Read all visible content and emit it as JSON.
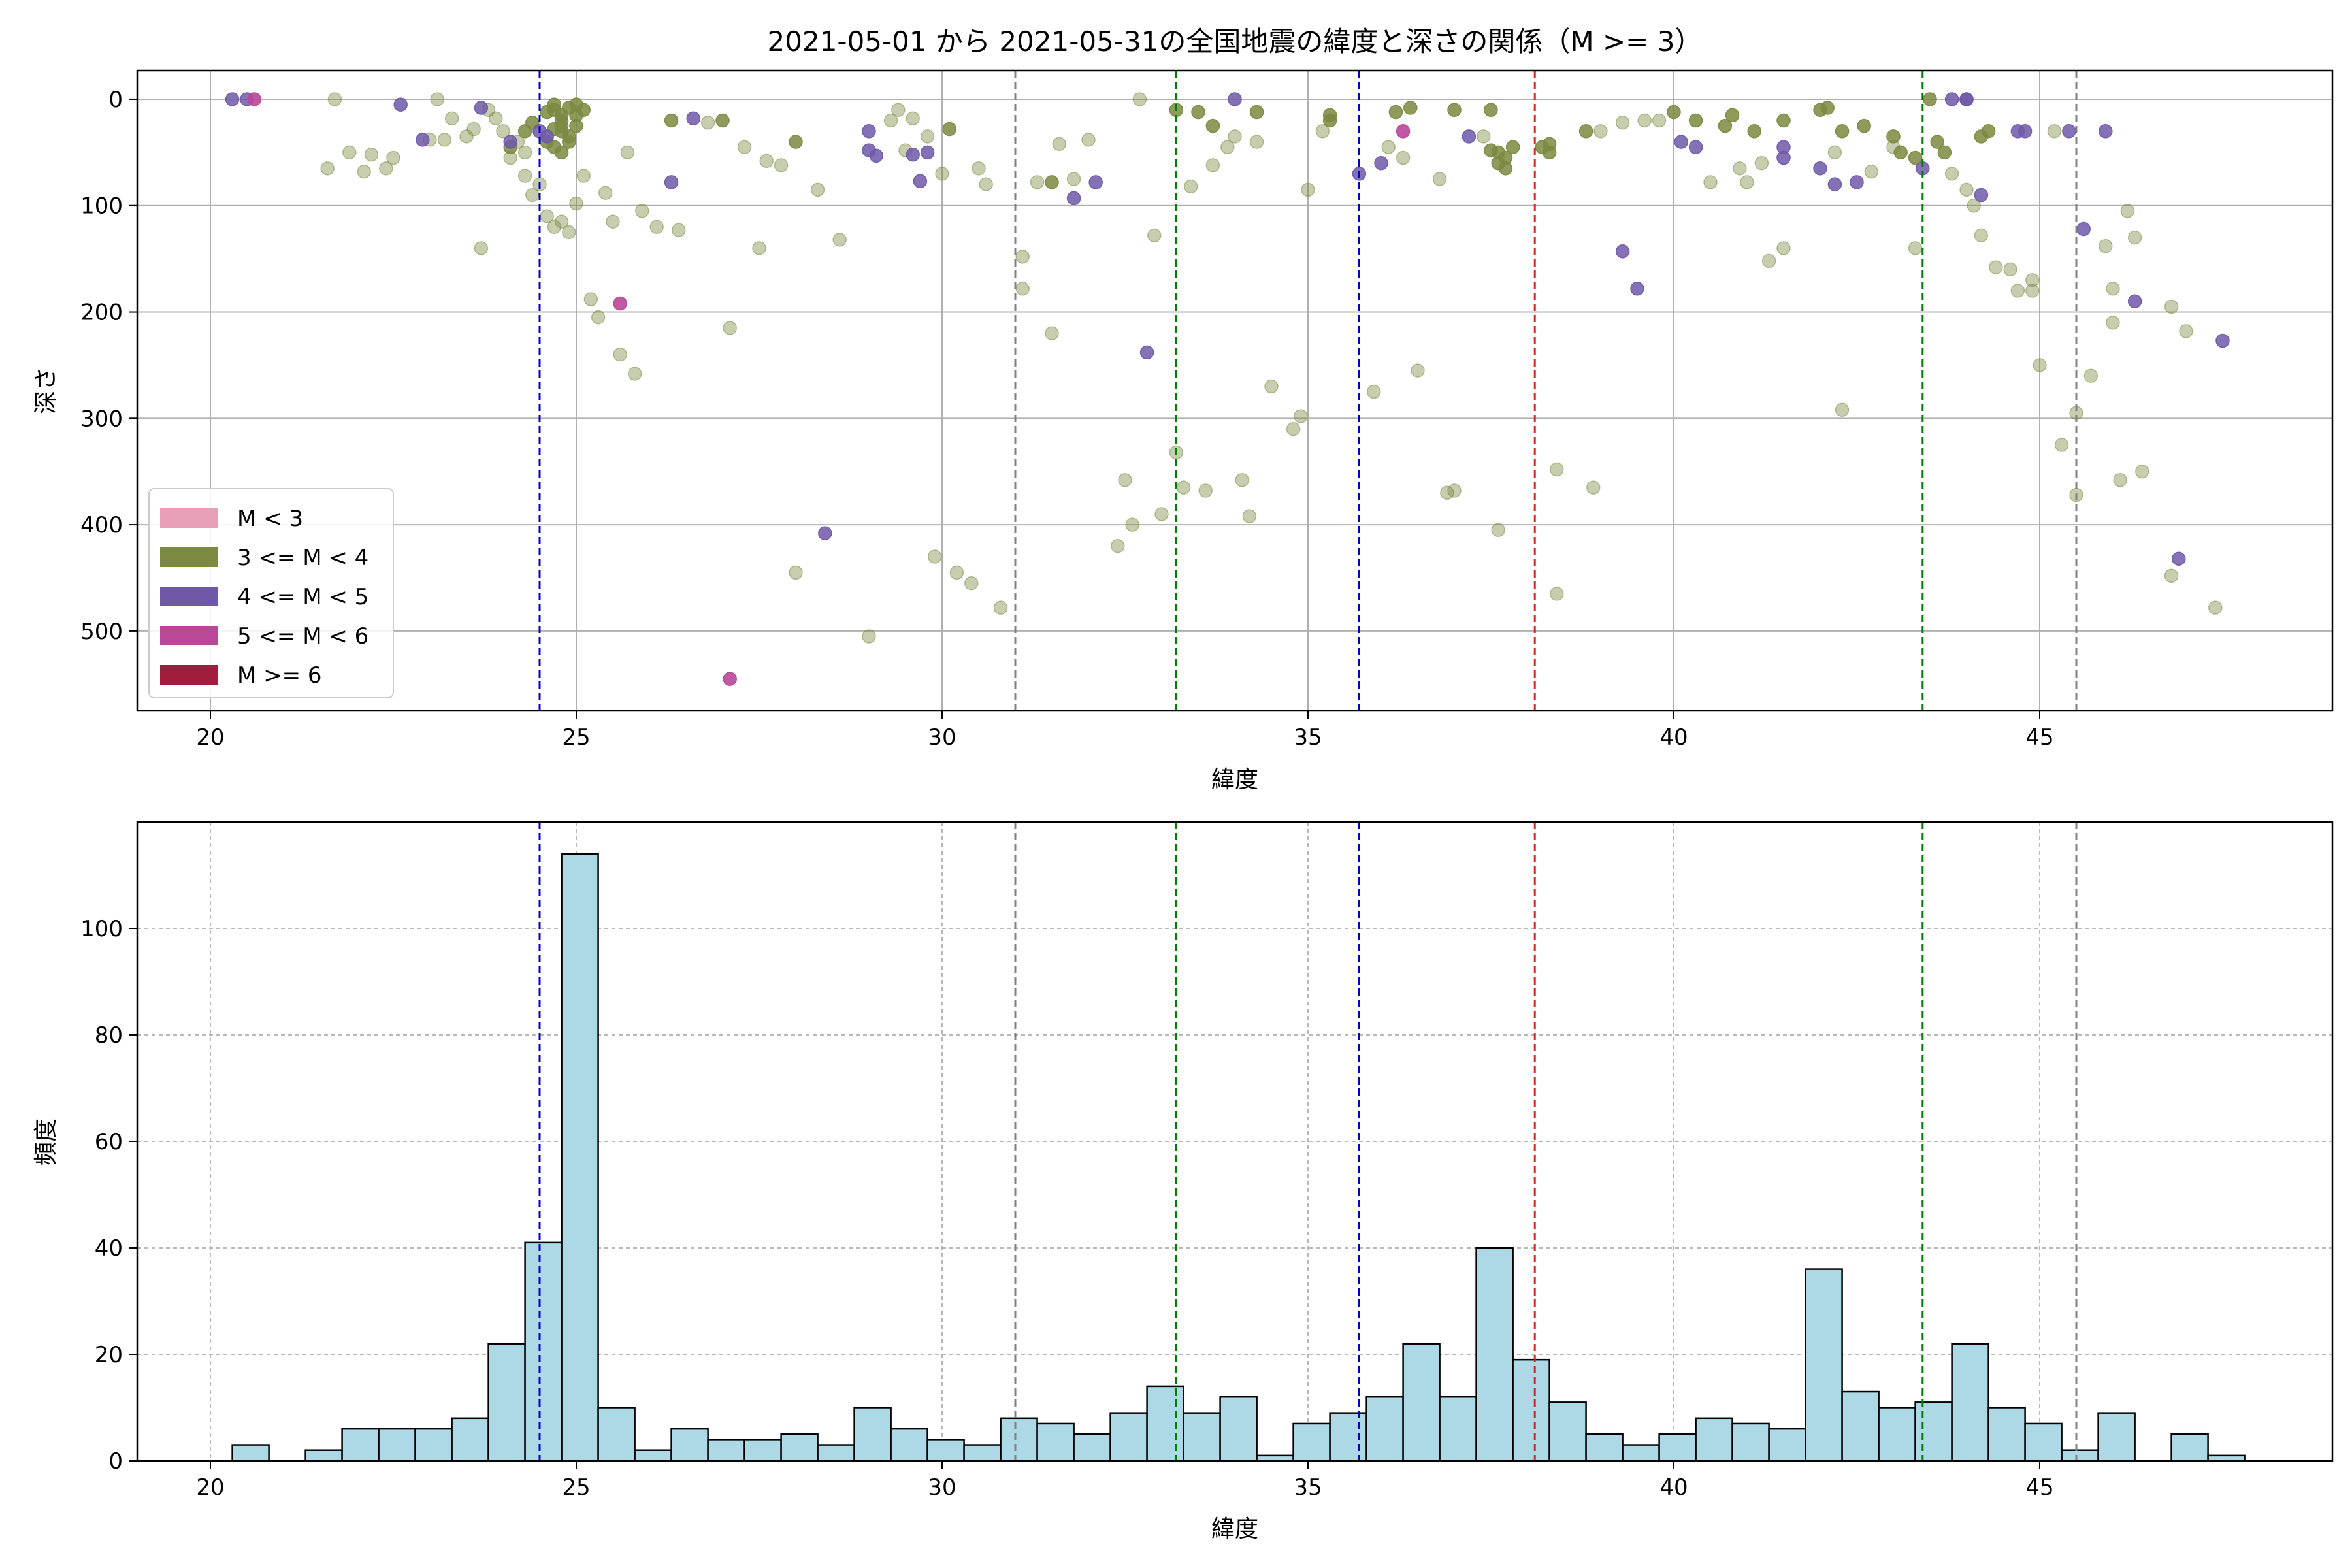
{
  "title": "2021-05-01 から 2021-05-31の全国地震の緯度と深さの関係（M >= 3）",
  "colors": {
    "m_lt3": "#e8a0b8",
    "m_3_4": "#7a8a40",
    "m_4_5": "#7058a8",
    "m_5_6": "#b84898",
    "m_ge6": "#a01e3c",
    "blue": "#0000cc",
    "grey": "#808080",
    "green": "#008000",
    "red": "#dd2222",
    "hist_fill": "#add8e6"
  },
  "chart_data": [
    {
      "type": "scatter",
      "xlabel": "緯度",
      "ylabel": "深さ",
      "xlim": [
        19,
        49
      ],
      "ylim": [
        575,
        -27
      ],
      "y_inverted": true,
      "xticks": [
        20,
        25,
        30,
        35,
        40,
        45
      ],
      "yticks": [
        0,
        100,
        200,
        300,
        400,
        500
      ],
      "grid": true,
      "legend_position": "lower-left",
      "legend": [
        {
          "label": "M < 3",
          "color": "#e8a0b8"
        },
        {
          "label": "3 <= M < 4",
          "color": "#7a8a40"
        },
        {
          "label": "4 <= M < 5",
          "color": "#7058a8"
        },
        {
          "label": "5 <= M < 6",
          "color": "#b84898"
        },
        {
          "label": "M >= 6",
          "color": "#a01e3c"
        }
      ],
      "vlines": [
        {
          "x": 24.5,
          "color": "blue"
        },
        {
          "x": 31.0,
          "color": "grey"
        },
        {
          "x": 33.2,
          "color": "green"
        },
        {
          "x": 35.7,
          "color": "blue"
        },
        {
          "x": 38.1,
          "color": "red"
        },
        {
          "x": 43.4,
          "color": "green"
        },
        {
          "x": 45.5,
          "color": "grey"
        }
      ],
      "points": {
        "m_4_5": [
          [
            20.3,
            0
          ],
          [
            20.5,
            0
          ],
          [
            22.6,
            5
          ],
          [
            22.9,
            38
          ],
          [
            23.7,
            8
          ],
          [
            24.1,
            40
          ],
          [
            24.5,
            30
          ],
          [
            24.6,
            35
          ],
          [
            26.3,
            78
          ],
          [
            26.6,
            18
          ],
          [
            29.0,
            30
          ],
          [
            29.0,
            48
          ],
          [
            29.1,
            53
          ],
          [
            29.6,
            52
          ],
          [
            29.7,
            77
          ],
          [
            29.8,
            50
          ],
          [
            31.8,
            93
          ],
          [
            32.1,
            78
          ],
          [
            32.8,
            238
          ],
          [
            36.0,
            60
          ],
          [
            37.2,
            35
          ],
          [
            39.3,
            143
          ],
          [
            39.5,
            178
          ],
          [
            40.1,
            40
          ],
          [
            40.3,
            45
          ],
          [
            41.5,
            45
          ],
          [
            41.5,
            55
          ],
          [
            42.0,
            65
          ],
          [
            42.2,
            80
          ],
          [
            42.5,
            78
          ],
          [
            43.4,
            65
          ],
          [
            43.8,
            0
          ],
          [
            44.0,
            0
          ],
          [
            44.0,
            0
          ],
          [
            44.2,
            90
          ],
          [
            44.7,
            30
          ],
          [
            44.8,
            30
          ],
          [
            45.4,
            30
          ],
          [
            45.6,
            122
          ],
          [
            45.9,
            30
          ],
          [
            46.3,
            190
          ],
          [
            46.9,
            432
          ],
          [
            47.5,
            227
          ],
          [
            28.4,
            408
          ],
          [
            34.0,
            0
          ],
          [
            35.7,
            70
          ]
        ],
        "m_5_6": [
          [
            20.6,
            0
          ],
          [
            25.6,
            192
          ],
          [
            27.1,
            545
          ],
          [
            36.3,
            30
          ]
        ],
        "m_3_4_strong": [
          [
            24.7,
            5
          ],
          [
            24.7,
            10
          ],
          [
            24.8,
            15
          ],
          [
            24.8,
            20
          ],
          [
            24.8,
            25
          ],
          [
            24.8,
            30
          ],
          [
            24.9,
            35
          ],
          [
            24.9,
            40
          ],
          [
            24.7,
            45
          ],
          [
            25.0,
            5
          ],
          [
            25.0,
            15
          ],
          [
            25.0,
            25
          ],
          [
            24.6,
            12
          ],
          [
            24.7,
            28
          ],
          [
            24.9,
            8
          ],
          [
            25.1,
            10
          ],
          [
            24.8,
            50
          ],
          [
            24.6,
            40
          ],
          [
            24.3,
            30
          ],
          [
            24.4,
            22
          ],
          [
            24.1,
            45
          ],
          [
            26.3,
            20
          ],
          [
            27.0,
            20
          ],
          [
            28.0,
            40
          ],
          [
            30.1,
            28
          ],
          [
            31.5,
            78
          ],
          [
            33.2,
            10
          ],
          [
            33.5,
            12
          ],
          [
            33.7,
            25
          ],
          [
            34.3,
            12
          ],
          [
            35.3,
            15
          ],
          [
            35.3,
            20
          ],
          [
            36.2,
            12
          ],
          [
            36.4,
            8
          ],
          [
            37.0,
            10
          ],
          [
            37.5,
            10
          ],
          [
            37.6,
            50
          ],
          [
            37.7,
            55
          ],
          [
            37.8,
            45
          ],
          [
            37.6,
            60
          ],
          [
            37.7,
            65
          ],
          [
            38.2,
            45
          ],
          [
            38.3,
            50
          ],
          [
            38.8,
            30
          ],
          [
            40.0,
            12
          ],
          [
            40.3,
            20
          ],
          [
            40.7,
            25
          ],
          [
            40.8,
            15
          ],
          [
            41.1,
            30
          ],
          [
            41.5,
            20
          ],
          [
            42.0,
            10
          ],
          [
            42.1,
            8
          ],
          [
            42.3,
            30
          ],
          [
            42.6,
            25
          ],
          [
            43.0,
            35
          ],
          [
            43.1,
            50
          ],
          [
            43.3,
            55
          ],
          [
            43.5,
            0
          ],
          [
            43.6,
            40
          ],
          [
            43.7,
            50
          ],
          [
            44.2,
            35
          ],
          [
            44.3,
            30
          ],
          [
            38.3,
            42
          ],
          [
            37.5,
            48
          ]
        ],
        "m_3_4_faint": [
          [
            21.6,
            65
          ],
          [
            21.7,
            0
          ],
          [
            21.9,
            50
          ],
          [
            22.1,
            68
          ],
          [
            22.2,
            52
          ],
          [
            22.4,
            65
          ],
          [
            22.5,
            55
          ],
          [
            23.0,
            38
          ],
          [
            23.1,
            0
          ],
          [
            23.2,
            38
          ],
          [
            23.3,
            18
          ],
          [
            23.5,
            35
          ],
          [
            23.6,
            28
          ],
          [
            23.7,
            140
          ],
          [
            23.8,
            10
          ],
          [
            23.9,
            18
          ],
          [
            24.0,
            30
          ],
          [
            24.1,
            55
          ],
          [
            24.2,
            40
          ],
          [
            24.3,
            50
          ],
          [
            24.3,
            72
          ],
          [
            24.4,
            90
          ],
          [
            24.5,
            80
          ],
          [
            24.6,
            110
          ],
          [
            24.7,
            120
          ],
          [
            24.8,
            115
          ],
          [
            24.9,
            125
          ],
          [
            25.0,
            98
          ],
          [
            25.1,
            72
          ],
          [
            25.2,
            188
          ],
          [
            25.3,
            205
          ],
          [
            25.4,
            88
          ],
          [
            25.5,
            115
          ],
          [
            25.6,
            240
          ],
          [
            25.7,
            50
          ],
          [
            25.8,
            258
          ],
          [
            25.9,
            105
          ],
          [
            26.1,
            120
          ],
          [
            26.4,
            123
          ],
          [
            26.8,
            22
          ],
          [
            27.1,
            215
          ],
          [
            27.3,
            45
          ],
          [
            27.5,
            140
          ],
          [
            27.6,
            58
          ],
          [
            27.8,
            62
          ],
          [
            28.0,
            445
          ],
          [
            28.3,
            85
          ],
          [
            28.6,
            132
          ],
          [
            29.0,
            505
          ],
          [
            29.3,
            20
          ],
          [
            29.4,
            10
          ],
          [
            29.5,
            48
          ],
          [
            29.6,
            18
          ],
          [
            29.8,
            35
          ],
          [
            29.9,
            430
          ],
          [
            30.0,
            70
          ],
          [
            30.2,
            445
          ],
          [
            30.4,
            455
          ],
          [
            30.5,
            65
          ],
          [
            30.6,
            80
          ],
          [
            30.8,
            478
          ],
          [
            31.1,
            148
          ],
          [
            31.1,
            178
          ],
          [
            31.3,
            78
          ],
          [
            31.5,
            220
          ],
          [
            31.6,
            42
          ],
          [
            31.8,
            75
          ],
          [
            32.0,
            38
          ],
          [
            32.4,
            420
          ],
          [
            32.5,
            358
          ],
          [
            32.6,
            400
          ],
          [
            32.7,
            0
          ],
          [
            32.9,
            128
          ],
          [
            33.0,
            390
          ],
          [
            33.2,
            332
          ],
          [
            33.3,
            365
          ],
          [
            33.4,
            82
          ],
          [
            33.6,
            368
          ],
          [
            33.7,
            62
          ],
          [
            33.9,
            45
          ],
          [
            34.0,
            35
          ],
          [
            34.1,
            358
          ],
          [
            34.2,
            392
          ],
          [
            34.3,
            40
          ],
          [
            34.5,
            270
          ],
          [
            34.8,
            310
          ],
          [
            34.9,
            298
          ],
          [
            35.0,
            85
          ],
          [
            35.2,
            30
          ],
          [
            35.9,
            275
          ],
          [
            36.1,
            45
          ],
          [
            36.3,
            55
          ],
          [
            36.5,
            255
          ],
          [
            36.8,
            75
          ],
          [
            36.9,
            370
          ],
          [
            37.0,
            368
          ],
          [
            37.4,
            35
          ],
          [
            37.6,
            405
          ],
          [
            38.4,
            348
          ],
          [
            38.4,
            465
          ],
          [
            38.9,
            365
          ],
          [
            39.0,
            30
          ],
          [
            39.3,
            22
          ],
          [
            39.6,
            20
          ],
          [
            39.8,
            20
          ],
          [
            40.5,
            78
          ],
          [
            40.9,
            65
          ],
          [
            41.0,
            78
          ],
          [
            41.2,
            60
          ],
          [
            41.3,
            152
          ],
          [
            41.5,
            140
          ],
          [
            42.2,
            50
          ],
          [
            42.3,
            292
          ],
          [
            42.7,
            68
          ],
          [
            43.0,
            45
          ],
          [
            43.3,
            140
          ],
          [
            43.8,
            70
          ],
          [
            44.0,
            85
          ],
          [
            44.1,
            100
          ],
          [
            44.2,
            128
          ],
          [
            44.4,
            158
          ],
          [
            44.6,
            160
          ],
          [
            44.7,
            180
          ],
          [
            44.9,
            170
          ],
          [
            45.0,
            250
          ],
          [
            45.2,
            30
          ],
          [
            45.3,
            325
          ],
          [
            45.5,
            295
          ],
          [
            45.5,
            372
          ],
          [
            45.7,
            260
          ],
          [
            45.9,
            138
          ],
          [
            46.0,
            178
          ],
          [
            46.0,
            210
          ],
          [
            46.1,
            358
          ],
          [
            46.2,
            105
          ],
          [
            46.3,
            130
          ],
          [
            46.4,
            350
          ],
          [
            46.8,
            195
          ],
          [
            46.8,
            448
          ],
          [
            47.0,
            218
          ],
          [
            47.4,
            478
          ],
          [
            44.9,
            180
          ]
        ]
      }
    },
    {
      "type": "bar",
      "xlabel": "緯度",
      "ylabel": "頻度",
      "xlim": [
        19,
        49
      ],
      "ylim": [
        0,
        120
      ],
      "xticks": [
        20,
        25,
        30,
        35,
        40,
        45
      ],
      "yticks": [
        0,
        20,
        40,
        60,
        80,
        100
      ],
      "grid": true,
      "bin_start": 20.3,
      "bin_width": 0.5,
      "values": [
        3,
        0,
        2,
        6,
        6,
        6,
        8,
        22,
        41,
        114,
        10,
        2,
        6,
        4,
        4,
        5,
        3,
        10,
        6,
        4,
        3,
        8,
        7,
        5,
        9,
        14,
        9,
        12,
        1,
        7,
        9,
        12,
        22,
        12,
        40,
        19,
        11,
        5,
        3,
        5,
        8,
        7,
        6,
        36,
        13,
        10,
        11,
        22,
        10,
        7,
        2,
        9,
        0,
        5,
        1
      ],
      "vlines": [
        {
          "x": 24.5,
          "color": "blue"
        },
        {
          "x": 31.0,
          "color": "grey"
        },
        {
          "x": 33.2,
          "color": "green"
        },
        {
          "x": 35.7,
          "color": "blue"
        },
        {
          "x": 38.1,
          "color": "red"
        },
        {
          "x": 43.4,
          "color": "green"
        },
        {
          "x": 45.5,
          "color": "grey"
        }
      ]
    }
  ]
}
